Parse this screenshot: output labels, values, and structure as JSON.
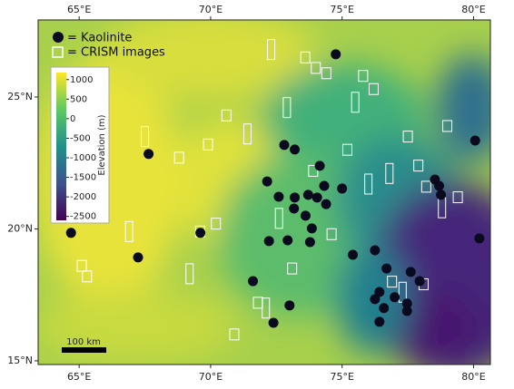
{
  "chart_data": {
    "type": "map",
    "xlim": [
      63.44,
      80.64
    ],
    "ylim": [
      14.86,
      27.92
    ],
    "xticks": [
      {
        "value": 65,
        "label": "65°E"
      },
      {
        "value": 70,
        "label": "70°E"
      },
      {
        "value": 75,
        "label": "75°E"
      },
      {
        "value": 80,
        "label": "80°E"
      }
    ],
    "yticks": [
      {
        "value": 15,
        "label": "15°N"
      },
      {
        "value": 20,
        "label": "20°N"
      },
      {
        "value": 25,
        "label": "25°N"
      }
    ],
    "series": [
      {
        "name": "= Kaolinite",
        "color": "#0a0a1e",
        "x": [
          74.76,
          67.64,
          64.69,
          67.24,
          69.61,
          72.8,
          73.2,
          74.15,
          72.15,
          72.59,
          73.2,
          73.71,
          74.05,
          74.32,
          74.39,
          75.0,
          73.17,
          73.61,
          73.85,
          72.22,
          72.93,
          73.78,
          71.61,
          73.0,
          72.39,
          75.41,
          76.25,
          76.69,
          76.42,
          77.0,
          76.25,
          76.59,
          76.42,
          77.47,
          77.61,
          77.95,
          77.47,
          78.76,
          78.69,
          78.53,
          80.06,
          80.22
        ],
        "y": [
          26.62,
          22.84,
          19.85,
          18.92,
          19.85,
          23.18,
          23.01,
          22.39,
          21.8,
          21.22,
          21.19,
          21.29,
          21.19,
          21.63,
          20.94,
          21.53,
          20.77,
          20.5,
          20.02,
          19.54,
          19.57,
          19.5,
          18.02,
          17.1,
          16.44,
          19.02,
          19.19,
          18.5,
          17.61,
          17.41,
          17.34,
          17.0,
          16.48,
          17.17,
          18.37,
          18.02,
          16.89,
          21.29,
          21.63,
          21.87,
          23.35,
          19.64
        ]
      },
      {
        "name": "= CRISM images",
        "color": "#ffffff",
        "x": [
          72.3,
          73.6,
          74.4,
          75.5,
          76.2,
          70.6,
          71.4,
          69.9,
          68.8,
          67.5,
          65.1,
          65.3,
          66.9,
          69.6,
          70.2,
          72.6,
          73.9,
          75.2,
          76.8,
          77.5,
          78.2,
          78.8,
          79.4,
          76.9,
          77.3,
          78.1,
          71.8,
          72.1,
          73.1,
          74.6,
          76.0,
          77.9,
          79.0,
          69.2,
          70.9,
          75.8,
          72.9,
          74.0
        ],
        "y": [
          26.8,
          26.5,
          25.9,
          24.8,
          25.3,
          24.3,
          23.6,
          23.2,
          22.7,
          23.5,
          18.6,
          18.2,
          19.9,
          19.9,
          20.2,
          20.4,
          22.2,
          23.0,
          22.1,
          23.5,
          21.6,
          20.8,
          21.2,
          18.0,
          17.6,
          17.9,
          17.2,
          17.0,
          18.5,
          19.8,
          21.7,
          22.4,
          23.9,
          18.3,
          16.0,
          25.8,
          24.6,
          26.1
        ]
      }
    ],
    "colorbar": {
      "label": "Elevation (m)",
      "clim": [
        -2600,
        1180
      ],
      "colormap": [
        "#440154",
        "#3b528b",
        "#21918c",
        "#5ec962",
        "#fde725"
      ],
      "ticks": [
        1000,
        500,
        0,
        -500,
        -1000,
        -1500,
        -2000,
        -2500
      ]
    },
    "scalebar": {
      "label": "100 km"
    }
  }
}
